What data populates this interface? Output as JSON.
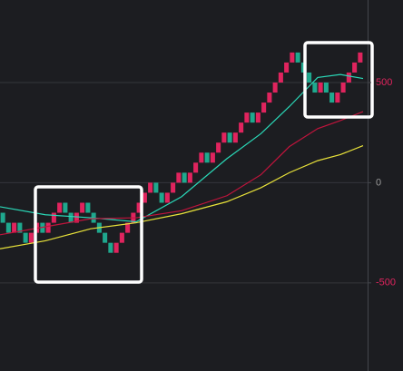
{
  "chart_data": {
    "type": "renko",
    "open": [
      -150,
      -200,
      -250,
      -200,
      -250,
      -300,
      -250,
      -200,
      -250,
      -200,
      -150,
      -100,
      -150,
      -200,
      -150,
      -100,
      -150,
      -200,
      -250,
      -300,
      -350,
      -300,
      -250,
      -200,
      -150,
      -100,
      -50,
      0,
      -50,
      -100,
      -50,
      0,
      50,
      0,
      50,
      100,
      150,
      100,
      150,
      200,
      250,
      200,
      250,
      300,
      350,
      300,
      350,
      400,
      450,
      500,
      550,
      600,
      650,
      600,
      550,
      500,
      450,
      500,
      450,
      400,
      450,
      500,
      550,
      600
    ],
    "close": [
      -200,
      -250,
      -200,
      -250,
      -300,
      -250,
      -200,
      -250,
      -200,
      -150,
      -100,
      -150,
      -200,
      -150,
      -100,
      -150,
      -200,
      -250,
      -300,
      -350,
      -300,
      -250,
      -200,
      -150,
      -100,
      -50,
      0,
      -50,
      -100,
      -50,
      0,
      50,
      0,
      50,
      100,
      150,
      100,
      150,
      200,
      250,
      200,
      250,
      300,
      350,
      300,
      350,
      400,
      450,
      500,
      550,
      600,
      650,
      600,
      550,
      500,
      450,
      500,
      450,
      400,
      450,
      500,
      550,
      600,
      650
    ],
    "up_color": "#e0245e",
    "down_color": "#1fa88e",
    "line_x": [
      0,
      8,
      16,
      24,
      32,
      40,
      46,
      51,
      56,
      60,
      64
    ],
    "lines": [
      {
        "color": "#2ad9b8",
        "values": [
          -120,
          -160,
          -175,
          -195,
          -70,
          120,
          245,
          380,
          525,
          540,
          520
        ]
      },
      {
        "color": "#c0143c",
        "values": [
          -260,
          -220,
          -180,
          -175,
          -140,
          -65,
          40,
          180,
          270,
          310,
          355
        ]
      },
      {
        "color": "#e8e23a",
        "values": [
          -330,
          -290,
          -230,
          -200,
          -155,
          -95,
          -25,
          50,
          110,
          140,
          185
        ]
      }
    ],
    "ylim": [
      -940,
      912
    ],
    "yticks": [
      500,
      0,
      -500
    ],
    "ytick_colors": [
      "#e0245e",
      "#9a9a9a",
      "#e0245e"
    ],
    "grid": true
  }
}
